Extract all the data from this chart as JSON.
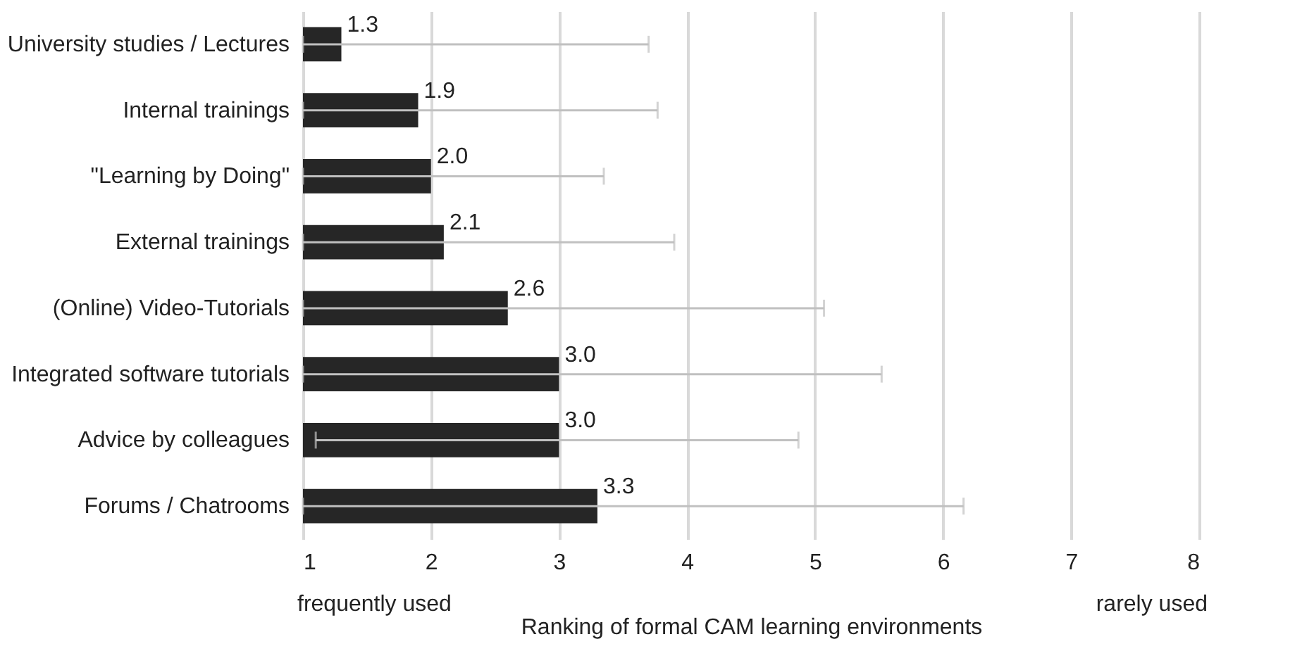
{
  "chart_data": {
    "type": "bar",
    "orientation": "horizontal",
    "xlabel": "Ranking of formal CAM learning environments",
    "categories": [
      "University studies / Lectures",
      "Internal trainings",
      "\"Learning by Doing\"",
      "External trainings",
      "(Online) Video-Tutorials",
      "Integrated software tutorials",
      "Advice by colleagues",
      "Forums / Chatrooms"
    ],
    "values": [
      1.3,
      1.9,
      2.0,
      2.1,
      2.6,
      3.0,
      3.0,
      3.3
    ],
    "value_labels": [
      "1.3",
      "1.9",
      "2.0",
      "2.1",
      "2.6",
      "3.0",
      "3.0",
      "3.3"
    ],
    "errors": [
      [
        1,
        3.7
      ],
      [
        1,
        3.77
      ],
      [
        1,
        3.35
      ],
      [
        1,
        3.9
      ],
      [
        1,
        5.07
      ],
      [
        1,
        5.52
      ],
      [
        1.1,
        4.87
      ],
      [
        1,
        6.16
      ]
    ],
    "color": "#262626",
    "xlim": [
      1,
      8
    ],
    "xticks": [
      1,
      2,
      3,
      4,
      5,
      6,
      7,
      8
    ],
    "grid": "x",
    "annotations": [
      "frequently used",
      "rarely used"
    ]
  }
}
